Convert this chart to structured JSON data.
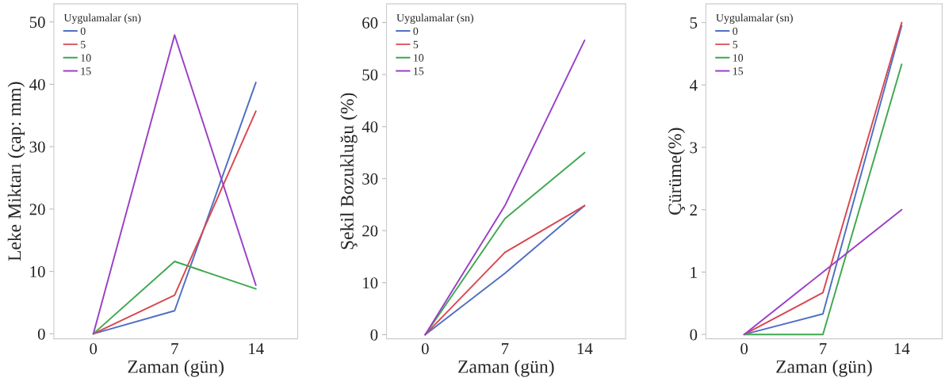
{
  "chart_data": [
    {
      "type": "line",
      "xlabel": "Zaman (gün)",
      "ylabel": "Leke Miktarı (çap: mm)",
      "legend_title": "Uygulamalar (sn)",
      "legend": "top left",
      "grid": false,
      "x": [
        0,
        7,
        14
      ],
      "xlim": [
        -3.4,
        17.6
      ],
      "xticks": [
        0,
        7,
        14
      ],
      "ylim": [
        -0.8,
        52.9
      ],
      "yticks": [
        0,
        10,
        20,
        30,
        40,
        50
      ],
      "series": [
        {
          "name": "0",
          "color": "#4f6fc4",
          "values": [
            0,
            3.7,
            40.3
          ]
        },
        {
          "name": "5",
          "color": "#d9474f",
          "values": [
            0,
            6.2,
            35.7
          ]
        },
        {
          "name": "10",
          "color": "#3ea84f",
          "values": [
            0,
            11.6,
            7.2
          ]
        },
        {
          "name": "15",
          "color": "#9a3fc7",
          "values": [
            0,
            47.9,
            7.8
          ]
        }
      ]
    },
    {
      "type": "line",
      "xlabel": "Zaman (gün)",
      "ylabel": "Şekil Bozukluğu (%)",
      "legend_title": "Uygulamalar (sn)",
      "legend": "top left",
      "grid": false,
      "x": [
        0,
        7,
        14
      ],
      "xlim": [
        -3.4,
        17.6
      ],
      "xticks": [
        0,
        7,
        14
      ],
      "ylim": [
        -0.8,
        63.6
      ],
      "yticks": [
        0,
        10,
        20,
        30,
        40,
        50,
        60
      ],
      "series": [
        {
          "name": "0",
          "color": "#4f6fc4",
          "values": [
            0,
            11.8,
            24.8
          ]
        },
        {
          "name": "5",
          "color": "#d9474f",
          "values": [
            0,
            15.8,
            24.8
          ]
        },
        {
          "name": "10",
          "color": "#3ea84f",
          "values": [
            0,
            22.3,
            35
          ]
        },
        {
          "name": "15",
          "color": "#9a3fc7",
          "values": [
            0,
            24.8,
            56.6
          ]
        }
      ]
    },
    {
      "type": "line",
      "xlabel": "Zaman (gün)",
      "ylabel": "Çürüme(%)",
      "legend_title": "Uygulamalar (sn)",
      "legend": "top left",
      "grid": false,
      "x": [
        0,
        7,
        14
      ],
      "xlim": [
        -3.4,
        17.6
      ],
      "xticks": [
        0,
        7,
        14
      ],
      "ylim": [
        -0.07,
        5.3
      ],
      "yticks": [
        0,
        1,
        2,
        3,
        4,
        5
      ],
      "series": [
        {
          "name": "0",
          "color": "#4f6fc4",
          "values": [
            0,
            0.33,
            4.95
          ]
        },
        {
          "name": "5",
          "color": "#d9474f",
          "values": [
            0,
            0.67,
            5
          ]
        },
        {
          "name": "10",
          "color": "#3ea84f",
          "values": [
            0,
            0,
            4.33
          ]
        },
        {
          "name": "15",
          "color": "#9a3fc7",
          "values": [
            0,
            1.0,
            2.0
          ]
        }
      ]
    }
  ]
}
